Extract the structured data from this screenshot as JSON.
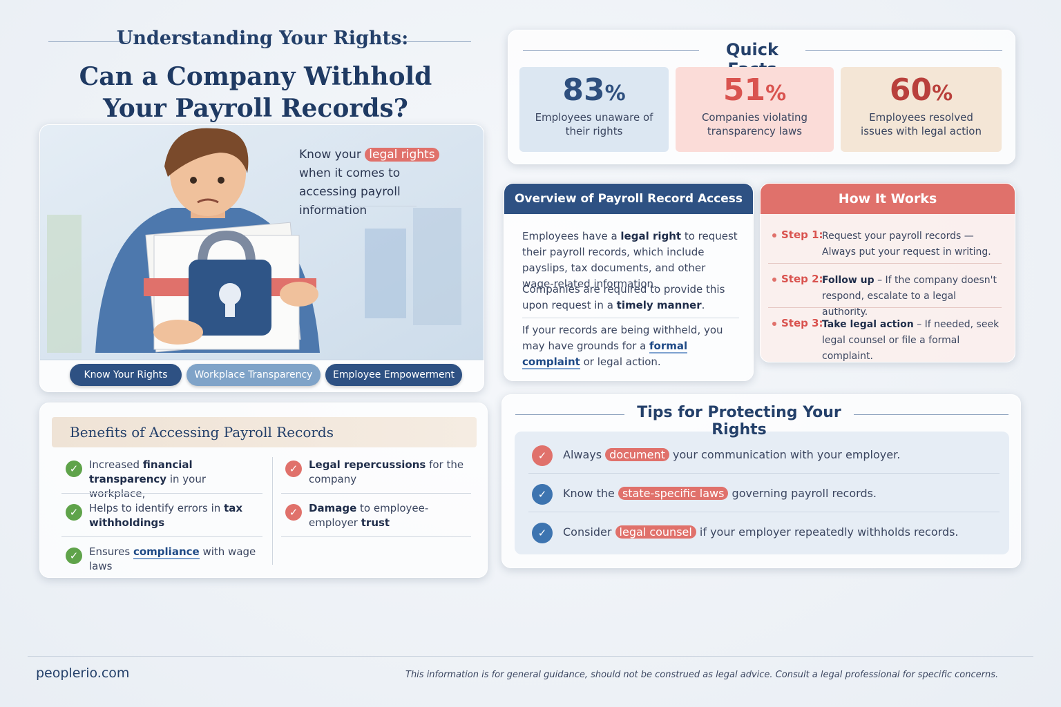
{
  "header": {
    "kicker": "Understanding Your Rights:",
    "title": "Can a Company Withhold Your Payroll Records?"
  },
  "hero": {
    "caption": [
      "Know your ",
      {
        "hl": "legal rights"
      },
      " when it comes to accessing payroll information"
    ],
    "tags": [
      "Know Your Rights",
      "Workplace Transparency",
      "Employee Empowerment"
    ]
  },
  "benefits": {
    "title": "Benefits of Accessing Payroll Records",
    "pros": [
      [
        "Increased ",
        {
          "b": "financial transparency"
        },
        " in your workplace,"
      ],
      [
        "Helps to identify errors in ",
        {
          "b": "tax withholdings"
        }
      ],
      [
        "Ensures ",
        {
          "u": "compliance"
        },
        " with wage laws"
      ]
    ],
    "cons": [
      [
        {
          "b": "Legal repercussions"
        },
        " for the company"
      ],
      [
        {
          "b": "Damage"
        },
        " to employee-employer ",
        {
          "b": "trust"
        }
      ]
    ]
  },
  "quick_facts": {
    "title": "Quick Facts",
    "facts": [
      {
        "number": "83",
        "unit": "%",
        "label": "Employees unaware of their rights"
      },
      {
        "number": "51",
        "unit": "%",
        "label": "Companies violating transparency laws"
      },
      {
        "number": "60",
        "unit": "%",
        "label": "Employees resolved issues with legal action"
      }
    ]
  },
  "overview": {
    "title": "Overview of Payroll Record Access",
    "paragraphs": [
      [
        "Employees have a ",
        {
          "b": "legal right"
        },
        " to request their payroll records, which include payslips, tax documents, and other wage-related information."
      ],
      [
        "Companies are required to provide this upon request in a ",
        {
          "b": "timely manner"
        },
        "."
      ],
      [
        "If your records are being withheld, you may have grounds for a ",
        {
          "u": "formal complaint"
        },
        " or legal action."
      ]
    ]
  },
  "how_it_works": {
    "title": "How It Works",
    "steps": [
      {
        "label": "Step 1:",
        "text": [
          "Request your payroll records — Always put your request in writing."
        ]
      },
      {
        "label": "Step 2:",
        "text": [
          {
            "b": "Follow up"
          },
          " – If the company doesn't respond, escalate to a legal authority."
        ]
      },
      {
        "label": "Step 3:",
        "text": [
          {
            "b": "Take legal action"
          },
          " – If needed, seek legal counsel or file a formal complaint."
        ]
      }
    ]
  },
  "tips": {
    "title": "Tips for Protecting Your Rights",
    "items": [
      [
        "Always ",
        {
          "hl": "document"
        },
        " your communication with your employer."
      ],
      [
        "Know the ",
        {
          "hl": "state-specific laws"
        },
        " governing payroll records."
      ],
      [
        "Consider ",
        {
          "hl": "legal counsel"
        },
        " if your employer repeatedly withholds records."
      ]
    ]
  },
  "footer": {
    "brand": "peoplerio.com",
    "disclaimer": "This information is for general guidance, should not be construed as legal advice. Consult a legal professional for specific concerns."
  }
}
